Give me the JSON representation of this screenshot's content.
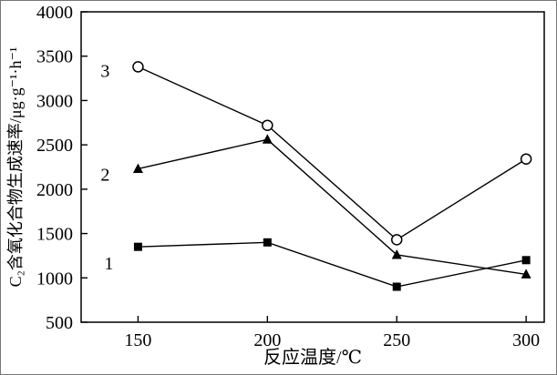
{
  "chart_data": {
    "type": "line",
    "title": "",
    "xlabel": "反应温度/℃",
    "ylabel": "C₂含氧化合物生成速率/μg·g⁻¹·h⁻¹",
    "x": [
      150,
      200,
      250,
      300
    ],
    "xticks": [
      150,
      200,
      250,
      300
    ],
    "yticks": [
      500,
      1000,
      1500,
      2000,
      2500,
      3000,
      3500,
      4000
    ],
    "xlim": [
      128,
      307
    ],
    "ylim": [
      500,
      4000
    ],
    "grid": false,
    "legend": "inline-numeric-labels-near-first-point",
    "axis_color": "#000000",
    "series": [
      {
        "name": "1",
        "marker": "square-filled",
        "color": "#000000",
        "values": [
          1350,
          1400,
          900,
          1200
        ]
      },
      {
        "name": "2",
        "marker": "triangle-filled",
        "color": "#000000",
        "values": [
          2230,
          2560,
          1260,
          1040
        ]
      },
      {
        "name": "3",
        "marker": "circle-open",
        "color": "#000000",
        "values": [
          3380,
          2720,
          1430,
          2340
        ]
      }
    ]
  }
}
